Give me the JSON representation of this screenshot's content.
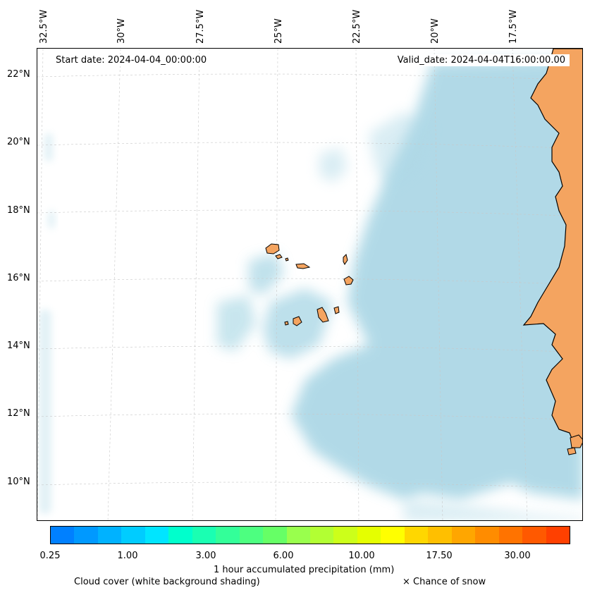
{
  "map": {
    "start_date": "Start date: 2024-04-04_00:00:00",
    "valid_date": "Valid_date: 2024-04-04T16:00:00.00",
    "longitude_labels": [
      "32.5°W",
      "30°W",
      "27.5°W",
      "25°W",
      "22.5°W",
      "20°W",
      "17.5°W"
    ],
    "latitude_labels": [
      "22°N",
      "20°N",
      "18°N",
      "16°N",
      "14°N",
      "12°N",
      "10°N"
    ],
    "colors": {
      "cloud": "#add8e6",
      "land": "#f4a460",
      "coast": "#000000",
      "grid": "#c8c8c8"
    }
  },
  "colorbar": {
    "colors": [
      "#0080ff",
      "#0099ff",
      "#00b2ff",
      "#00ccff",
      "#00e5ff",
      "#00ffcc",
      "#1affb2",
      "#33ff99",
      "#4dff80",
      "#66ff66",
      "#99ff4d",
      "#b2ff33",
      "#ccff1a",
      "#e5ff00",
      "#ffff00",
      "#ffd700",
      "#ffbf00",
      "#ffa600",
      "#ff8c00",
      "#ff7300",
      "#ff5900",
      "#ff4000"
    ],
    "tick_labels": [
      "0.25",
      "1.00",
      "3.00",
      "6.00",
      "10.00",
      "17.50",
      "30.00"
    ],
    "label": "1 hour accumulated precipitation (mm)"
  },
  "legend": {
    "cloud_cover": "Cloud cover (white background shading)",
    "snow": "× Chance of snow"
  }
}
